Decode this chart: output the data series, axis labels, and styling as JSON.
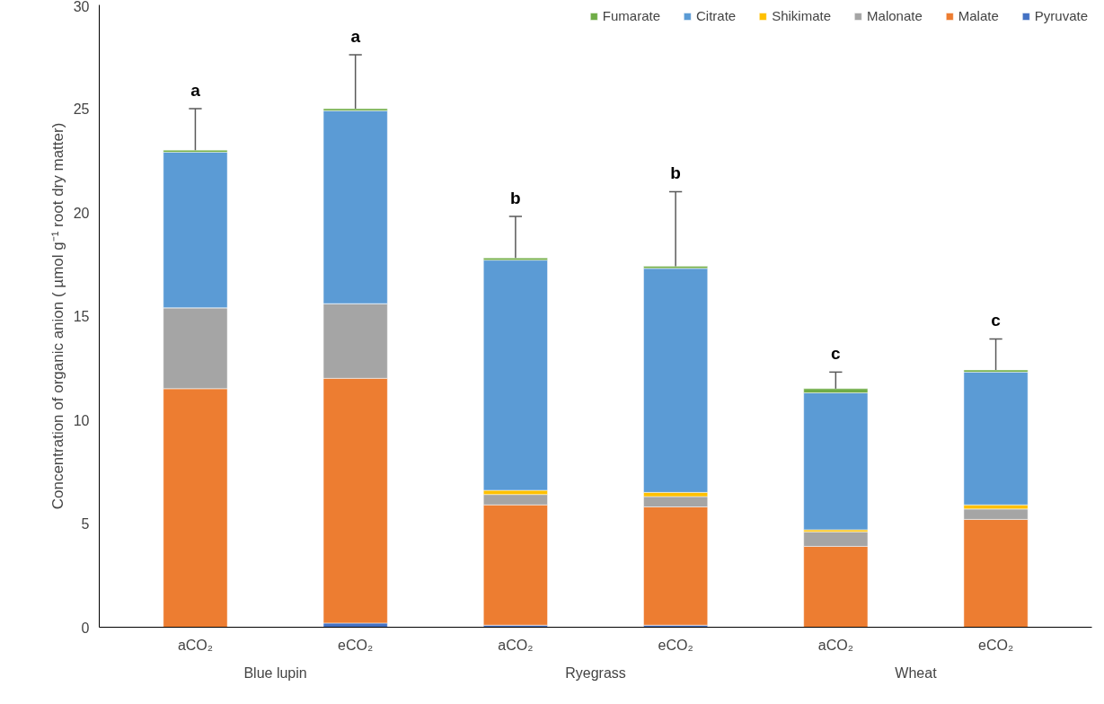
{
  "chart_data": {
    "type": "bar",
    "stacked": true,
    "ylabel": "Concentration of organic anion ( µmol g⁻¹ root dry matter)",
    "categories": [
      "aCO₂",
      "eCO₂",
      "aCO₂",
      "eCO₂",
      "aCO₂",
      "eCO₂"
    ],
    "series": [
      {
        "name": "Pyruvate",
        "color": "#4472c4",
        "values": [
          0,
          0.2,
          0.1,
          0.1,
          0,
          0
        ]
      },
      {
        "name": "Malate",
        "color": "#ed7d31",
        "values": [
          11.5,
          11.8,
          5.8,
          5.7,
          3.9,
          5.2
        ]
      },
      {
        "name": "Malonate",
        "color": "#a5a5a5",
        "values": [
          3.9,
          3.6,
          0.5,
          0.5,
          0.7,
          0.5
        ]
      },
      {
        "name": "Shikimate",
        "color": "#ffc000",
        "values": [
          0,
          0,
          0.2,
          0.2,
          0.1,
          0.2
        ]
      },
      {
        "name": "Citrate",
        "color": "#5b9bd5",
        "values": [
          7.5,
          9.3,
          11.1,
          10.8,
          6.6,
          6.4
        ]
      },
      {
        "name": "Fumarate",
        "color": "#70ad47",
        "values": [
          0.1,
          0.1,
          0.1,
          0.1,
          0.2,
          0.1
        ],
        "errors": [
          [
            23.0,
            25.0
          ],
          [
            25.0,
            27.6
          ],
          [
            17.8,
            19.8
          ],
          [
            17.4,
            21.0
          ],
          [
            11.5,
            12.3
          ],
          [
            12.4,
            13.9
          ]
        ]
      }
    ],
    "ylim": [
      0,
      30
    ],
    "yticks": [
      0,
      5,
      10,
      15,
      20,
      25,
      30
    ],
    "grid": false,
    "legend": "top",
    "annotations": [
      "a",
      "a",
      "b",
      "b",
      "c",
      "c",
      "Blue lupin",
      "Ryegrass",
      "Wheat"
    ]
  }
}
